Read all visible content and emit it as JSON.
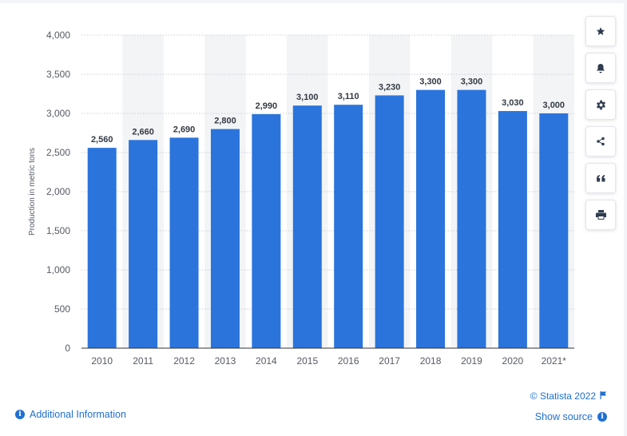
{
  "chart_data": {
    "type": "bar",
    "categories": [
      "2010",
      "2011",
      "2012",
      "2013",
      "2014",
      "2015",
      "2016",
      "2017",
      "2018",
      "2019",
      "2020",
      "2021*"
    ],
    "values": [
      2560,
      2660,
      2690,
      2800,
      2990,
      3100,
      3110,
      3230,
      3300,
      3300,
      3030,
      3000
    ],
    "value_labels": [
      "2,560",
      "2,660",
      "2,690",
      "2,800",
      "2,990",
      "3,100",
      "3,110",
      "3,230",
      "3,300",
      "3,300",
      "3,030",
      "3,000"
    ],
    "ylabel": "Production in metric tons",
    "xlabel": "",
    "ylim": [
      0,
      4000
    ],
    "yticks": [
      0,
      500,
      1000,
      1500,
      2000,
      2500,
      3000,
      3500,
      4000
    ],
    "ytick_labels": [
      "0",
      "500",
      "1,000",
      "1,500",
      "2,000",
      "2,500",
      "3,000",
      "3,500",
      "4,000"
    ],
    "grid": true,
    "bar_color": "#2a74dc",
    "alt_band_color": "#f3f4f6"
  },
  "toolbar": {
    "icons": [
      "star-icon",
      "bell-icon",
      "gear-icon",
      "share-icon",
      "quote-icon",
      "print-icon"
    ]
  },
  "footer": {
    "additional_info": "Additional Information",
    "copyright": "© Statista 2022",
    "show_source": "Show source"
  },
  "colors": {
    "link": "#1f6fd1",
    "bar": "#2a74dc"
  }
}
